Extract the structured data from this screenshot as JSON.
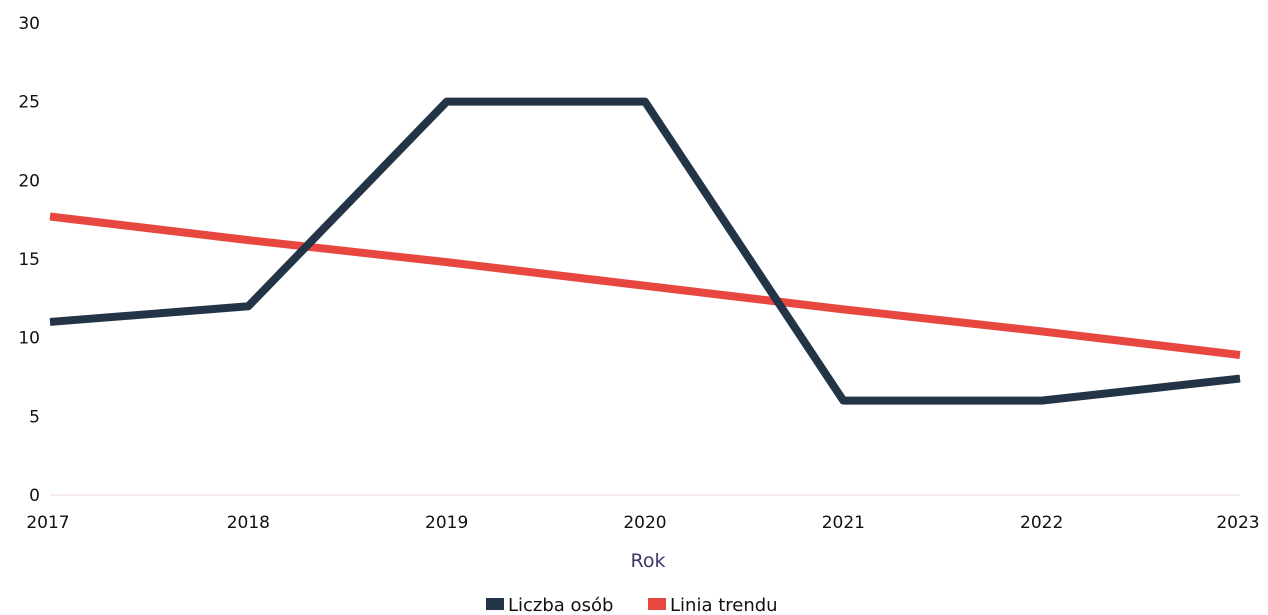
{
  "chart_data": {
    "type": "line",
    "title": "",
    "xlabel": "Rok",
    "ylabel": "",
    "categories": [
      "2017",
      "2018",
      "2019",
      "2020",
      "2021",
      "2022",
      "2023"
    ],
    "ylim": [
      0,
      30
    ],
    "yticks": [
      0,
      5,
      10,
      15,
      20,
      25,
      30
    ],
    "grid": false,
    "legend_position": "bottom",
    "series": [
      {
        "name": "Liczba osób",
        "color": "#243447",
        "values": [
          11,
          12,
          25,
          25,
          6,
          6,
          7.4
        ]
      },
      {
        "name": "Linia trendu",
        "color": "#e8473f",
        "values": [
          17.7,
          16.2,
          14.8,
          13.3,
          11.8,
          10.4,
          8.9
        ]
      }
    ]
  }
}
